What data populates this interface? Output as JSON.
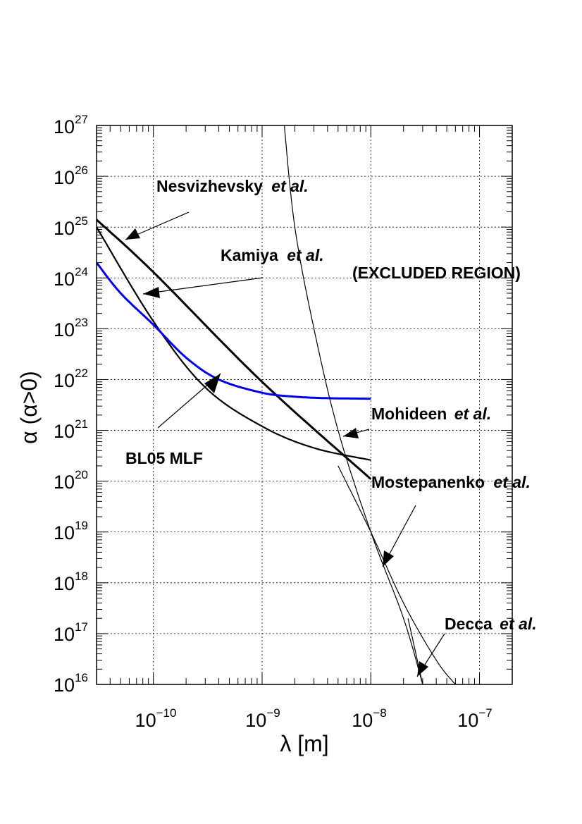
{
  "chart_data": {
    "type": "line",
    "log_x": true,
    "log_y": true,
    "xlim": [
      3e-11,
      2e-07
    ],
    "ylim": [
      1e+16,
      1e+27
    ],
    "xlabel": "λ [m]",
    "ylabel": "α (α>0)",
    "grid": true,
    "x_ticks": [
      {
        "value": 1e-10,
        "base": "10",
        "exp": "−10"
      },
      {
        "value": 1e-09,
        "base": "10",
        "exp": "−9"
      },
      {
        "value": 1e-08,
        "base": "10",
        "exp": "−8"
      },
      {
        "value": 1e-07,
        "base": "10",
        "exp": "−7"
      }
    ],
    "y_ticks": [
      {
        "value": 1e+16,
        "base": "10",
        "exp": "16"
      },
      {
        "value": 1e+17,
        "base": "10",
        "exp": "17"
      },
      {
        "value": 1e+18,
        "base": "10",
        "exp": "18"
      },
      {
        "value": 1e+19,
        "base": "10",
        "exp": "19"
      },
      {
        "value": 1e+20,
        "base": "10",
        "exp": "20"
      },
      {
        "value": 1e+21,
        "base": "10",
        "exp": "21"
      },
      {
        "value": 1e+22,
        "base": "10",
        "exp": "22"
      },
      {
        "value": 1e+23,
        "base": "10",
        "exp": "23"
      },
      {
        "value": 1e+24,
        "base": "10",
        "exp": "24"
      },
      {
        "value": 1e+25,
        "base": "10",
        "exp": "25"
      },
      {
        "value": 1e+26,
        "base": "10",
        "exp": "26"
      },
      {
        "value": 1e+27,
        "base": "10",
        "exp": "27"
      }
    ],
    "series": [
      {
        "color": "#000000",
        "width": 3,
        "x": [
          3e-11,
          1e-10,
          1e-09,
          1e-08
        ],
        "y": [
          1.4e+25,
          1.3e+24,
          9e+21,
          1.1e+20
        ]
      },
      {
        "color": "#000000",
        "width": 2.2,
        "x": [
          3e-11,
          1e-10,
          3e-10,
          1e-09,
          3e-09,
          1e-08
        ],
        "y": [
          1e+25,
          1.4e+23,
          7e+21,
          1.2e+21,
          4.5e+20,
          2.6e+20
        ]
      },
      {
        "color": "#0000ee",
        "width": 3,
        "x": [
          3e-11,
          5e-11,
          1e-10,
          2e-10,
          4e-10,
          1e-09,
          2e-09,
          4e-09,
          1e-08
        ],
        "y": [
          2e+24,
          5e+23,
          1.2e+23,
          2.7e+22,
          1e+22,
          5.5e+21,
          4.6e+21,
          4.3e+21,
          4.2e+21
        ]
      },
      {
        "color": "#000000",
        "width": 1.2,
        "x": [
          1.6e-09,
          2e-09,
          3e-09,
          5e-09,
          1e-08,
          2e-08,
          3e-08
        ],
        "y": [
          1e+27,
          1e+25,
          1e+23,
          1e+21,
          1e+19,
          2e+17,
          1e+16
        ]
      },
      {
        "color": "#000000",
        "width": 1.2,
        "x": [
          5e-09,
          1e-08,
          2e-08,
          4e-08,
          6e-08
        ],
        "y": [
          2e+20,
          1e+19,
          4e+17,
          3e+16,
          1e+16
        ]
      },
      {
        "color": "#000000",
        "width": 1.2,
        "x": [
          2.2e-08,
          3e-08
        ],
        "y": [
          2e+17,
          1e+16
        ]
      }
    ],
    "annotations": [
      {
        "label": "Nesvizhevsky",
        "italic": "et al."
      },
      {
        "label": "Kamiya",
        "italic": "et al."
      },
      {
        "label": "(EXCLUDED REGION)",
        "italic": ""
      },
      {
        "label": "Mohideen",
        "italic": "et al."
      },
      {
        "label": "Mostepanenko",
        "italic": "et al."
      },
      {
        "label": "Decca",
        "italic": "et al."
      },
      {
        "label": "BL05 MLF",
        "italic": "",
        "color": "#0000ee"
      }
    ]
  }
}
